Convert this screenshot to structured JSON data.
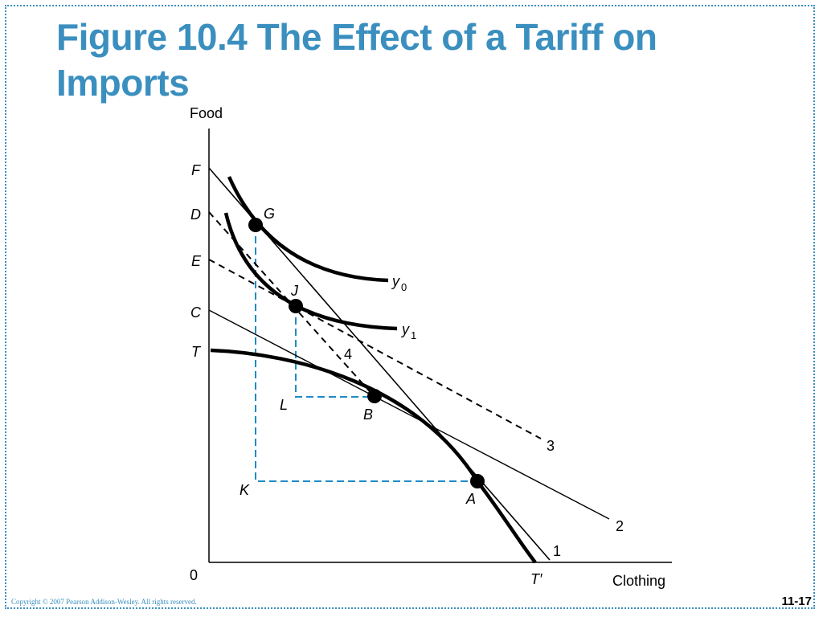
{
  "slide": {
    "title": "Figure 10.4  The Effect of a Tariff on Imports",
    "copyright": "Copyright © 2007 Pearson Addison-Wesley. All rights reserved.",
    "page_number": "11-17",
    "accent_color": "#3a8fbf",
    "guide_color": "#1f8ac6"
  },
  "diagram": {
    "axes": {
      "y_label": "Food",
      "x_label": "Clothing",
      "origin": "0"
    },
    "intercept_labels": {
      "F": "F",
      "D": "D",
      "E": "E",
      "C": "C",
      "T": "T",
      "T_prime": "T′"
    },
    "point_labels": {
      "G": "G",
      "J": "J",
      "B": "B",
      "A": "A",
      "L": "L",
      "K": "K"
    },
    "curve_labels": {
      "y0_base": "y",
      "y0_sub": "0",
      "y1_base": "y",
      "y1_sub": "1"
    },
    "line_labels": {
      "line1": "1",
      "line2": "2",
      "line3": "3",
      "line4": "4"
    }
  }
}
